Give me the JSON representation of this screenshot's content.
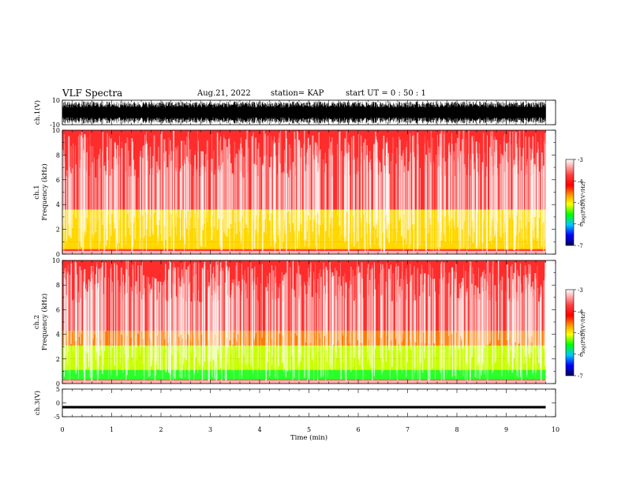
{
  "header": {
    "title": "VLF Spectra",
    "date": "Aug.21, 2022",
    "station": "station= KAP",
    "start": "start  UT  =   0 : 50 : 1"
  },
  "chart_data": [
    {
      "type": "line",
      "panel": "ch1-waveform",
      "ylabel": "ch.1(V)",
      "ylim": [
        -10,
        10
      ],
      "y_ticks": [
        "10",
        "-10"
      ],
      "xlim": [
        0,
        10
      ],
      "trace": "dense noise, saturating roughly between -9 and 9 V across 0 to 9.8 min"
    },
    {
      "type": "heatmap",
      "panel": "ch1-spectrogram",
      "ylabel": "ch.1\nFrequency (kHz)",
      "ylim": [
        0,
        10
      ],
      "y_ticks": [
        "0",
        "2",
        "4",
        "6",
        "8",
        "10"
      ],
      "xlim": [
        0,
        10
      ],
      "data_extent_min": 9.8,
      "colorbar": {
        "label": "log(PSD)(V²/Hz)",
        "range": [
          -7,
          -3
        ],
        "ticks": [
          "-3",
          "-4",
          "-5",
          "-6",
          "-7"
        ]
      },
      "bands_kHz": [
        {
          "from": 0.4,
          "to": 1.0,
          "level": -4.3
        },
        {
          "from": 1.0,
          "to": 2.0,
          "level": -4.5
        },
        {
          "from": 2.0,
          "to": 3.6,
          "level": -4.3
        },
        {
          "from": 3.6,
          "to": 10,
          "level": -3.4
        }
      ]
    },
    {
      "type": "heatmap",
      "panel": "ch2-spectrogram",
      "ylabel": "ch.2\nFrequency (kHz)",
      "ylim": [
        0,
        10
      ],
      "y_ticks": [
        "0",
        "2",
        "4",
        "6",
        "8",
        "10"
      ],
      "xlim": [
        0,
        10
      ],
      "data_extent_min": 9.8,
      "colorbar": {
        "label": "log(PSD)(V²/Hz)",
        "range": [
          -7,
          -3
        ],
        "ticks": [
          "-3",
          "-4",
          "-5",
          "-6",
          "-7"
        ]
      },
      "bands_kHz": [
        {
          "from": 0.3,
          "to": 1.1,
          "level": -5.0
        },
        {
          "from": 1.1,
          "to": 2.0,
          "level": -4.8
        },
        {
          "from": 2.0,
          "to": 3.1,
          "level": -4.8
        },
        {
          "from": 3.1,
          "to": 4.3,
          "level": -4.0
        },
        {
          "from": 4.3,
          "to": 10,
          "level": -3.4
        }
      ]
    },
    {
      "type": "line",
      "panel": "ch3-waveform",
      "ylabel": "ch.3(V)",
      "ylim": [
        -5,
        5
      ],
      "y_ticks": [
        "5",
        "0",
        "-5"
      ],
      "xlim": [
        0,
        10
      ],
      "trace": "narrow constant band near -1.5 V"
    }
  ],
  "xaxis": {
    "label": "Time  (min)",
    "ticks": [
      "0",
      "1",
      "2",
      "3",
      "4",
      "5",
      "6",
      "7",
      "8",
      "9",
      "10"
    ]
  },
  "colors": {
    "colormap": [
      "#ffffff",
      "#ff0000",
      "#ffa000",
      "#ffff00",
      "#00ff00",
      "#00c0ff",
      "#0000ff",
      "#000080"
    ]
  }
}
